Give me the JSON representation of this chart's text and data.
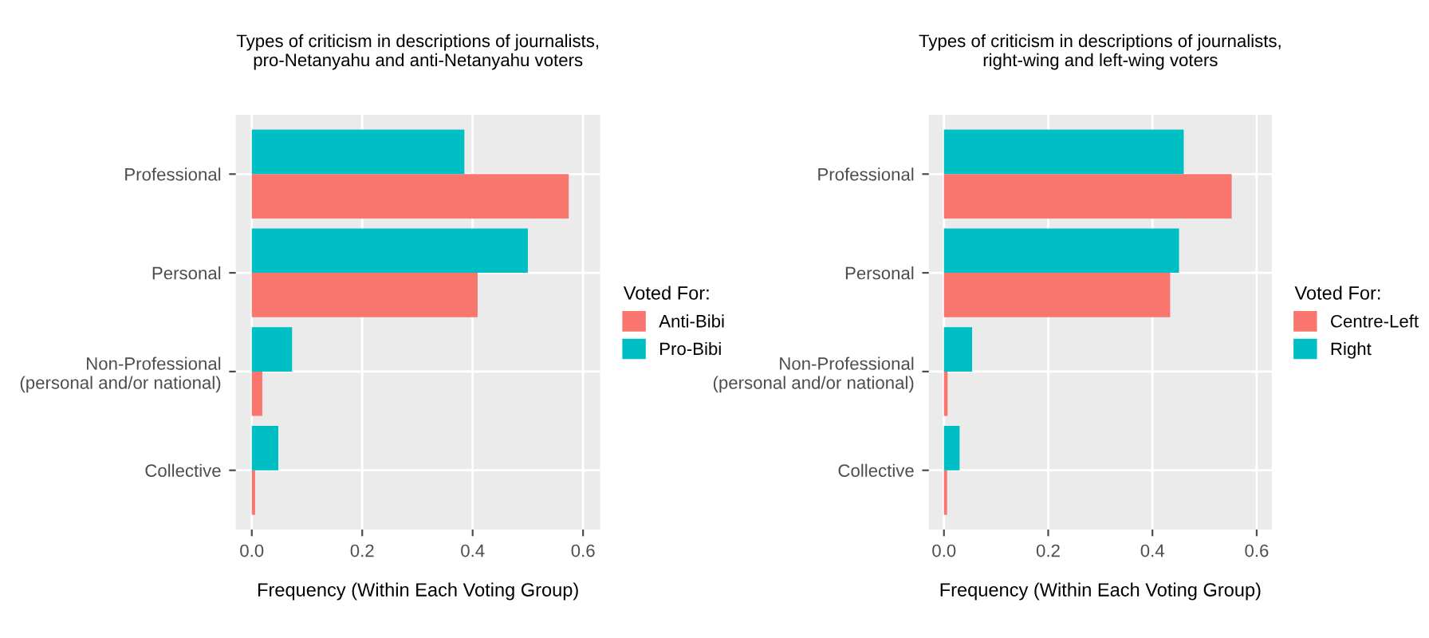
{
  "chart_data": [
    {
      "type": "bar",
      "orientation": "horizontal",
      "title": "Types of criticism in descriptions of journalists,\npro-Netanyahu and anti-Netanyahu voters",
      "xlabel": "Frequency (Within Each Voting Group)",
      "legend_title": "Voted For:",
      "legend": "right",
      "grid": true,
      "categories": [
        "Professional",
        "Personal",
        "Non-Professional\n(personal and/or national)",
        "Collective"
      ],
      "series": [
        {
          "name": "Anti-Bibi",
          "color": "#f8766d",
          "values": [
            0.574,
            0.409,
            0.019,
            0.006
          ]
        },
        {
          "name": "Pro-Bibi",
          "color": "#00bfc4",
          "values": [
            0.385,
            0.5,
            0.073,
            0.048
          ]
        }
      ],
      "xlim": [
        -0.029,
        0.631
      ],
      "xticks": [
        {
          "value": 0,
          "label": "0.0"
        },
        0.2,
        0.4,
        0.6
      ]
    },
    {
      "type": "bar",
      "orientation": "horizontal",
      "title": "Types of criticism in descriptions of journalists,\nright-wing and left-wing voters",
      "xlabel": "Frequency (Within Each Voting Group)",
      "legend_title": "Voted For:",
      "legend": "right",
      "grid": true,
      "categories": [
        "Professional",
        "Personal",
        "Non-Professional\n(personal and/or national)",
        "Collective"
      ],
      "series": [
        {
          "name": "Centre-Left",
          "color": "#f8766d",
          "values": [
            0.552,
            0.434,
            0.007,
            0.006
          ]
        },
        {
          "name": "Right",
          "color": "#00bfc4",
          "values": [
            0.46,
            0.451,
            0.054,
            0.03
          ]
        }
      ],
      "xlim": [
        -0.029,
        0.629
      ],
      "xticks": [
        {
          "value": 0,
          "label": "0.0"
        },
        0.2,
        0.4,
        0.6
      ]
    }
  ]
}
